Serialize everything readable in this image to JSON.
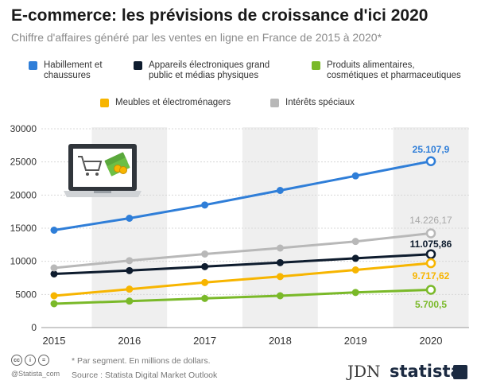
{
  "header": {
    "title": "E-commerce: les prévisions de croissance d'ici 2020",
    "subtitle": "Chiffre d'affaires généré par les ventes en ligne en France de 2015 à 2020*"
  },
  "chart_data": {
    "type": "line",
    "x": [
      "2015",
      "2016",
      "2017",
      "2018",
      "2019",
      "2020"
    ],
    "ylim": [
      0,
      30000
    ],
    "yticks": [
      "0",
      "5000",
      "10000",
      "15000",
      "20000",
      "25000",
      "30000"
    ],
    "grid": true,
    "legend_position": "top",
    "series": [
      {
        "name": "Habillement et\nchaussures",
        "color": "#2f7ed8",
        "values": [
          14700,
          16500,
          18500,
          20700,
          22900,
          25107.9
        ],
        "end_label": "25.107,9",
        "end_label_color": "#2f7ed8"
      },
      {
        "name": "Appareils électroniques grand\npublic et médias physiques",
        "color": "#0e1c2e",
        "values": [
          8100,
          8600,
          9200,
          9800,
          10450,
          11075.86
        ],
        "end_label": "11.075,86",
        "end_label_color": "#0e1c2e"
      },
      {
        "name": "Produits alimentaires,\ncosmétiques et pharmaceutiques",
        "color": "#7ab929",
        "values": [
          3600,
          4000,
          4400,
          4800,
          5300,
          5700.5
        ],
        "end_label": "5.700,5",
        "end_label_color": "#7ab929"
      },
      {
        "name": "Meubles et électroménagers",
        "color": "#f7b500",
        "values": [
          4800,
          5800,
          6800,
          7700,
          8700,
          9717.62
        ],
        "end_label": "9.717,62",
        "end_label_color": "#f7b500"
      },
      {
        "name": "Intérêts spéciaux",
        "color": "#b8b8b8",
        "values": [
          9000,
          10100,
          11100,
          12000,
          13000,
          14226.17
        ],
        "end_label": "14.226,17",
        "end_label_color": "#a8a8a8"
      }
    ]
  },
  "footer": {
    "note": "* Par segment. En millions de dollars.",
    "source": "Source : Statista Digital Market Outlook",
    "handle": "@Statista_com",
    "brand_jdn": "JDN",
    "brand_statista": "statista"
  },
  "icons": [
    "laptop-shopping-cart-icon",
    "cc-icon",
    "by-icon",
    "nd-icon",
    "statista-logo-icon"
  ]
}
